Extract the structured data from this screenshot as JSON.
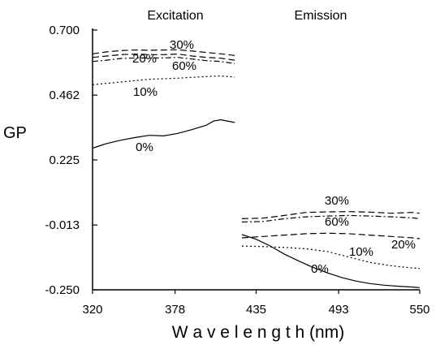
{
  "chart_data": {
    "type": "line",
    "xlabel": "W a v e l e n g t h  (nm)",
    "ylabel": "GP",
    "xlim": [
      320,
      550
    ],
    "ylim": [
      -0.25,
      0.7
    ],
    "x_ticks": [
      "320",
      "378",
      "435",
      "493",
      "550"
    ],
    "y_ticks": [
      "0.700",
      "0.462",
      "0.225",
      "-0.013",
      "-0.250"
    ],
    "grid": false,
    "panels": [
      {
        "title": "Excitation",
        "series": [
          {
            "name": "30%",
            "dash": "long-dash",
            "x": [
              320,
              330,
              340,
              350,
              360,
              370,
              380,
              390,
              400,
              410,
              420
            ],
            "y": [
              0.613,
              0.62,
              0.625,
              0.627,
              0.626,
              0.627,
              0.628,
              0.623,
              0.618,
              0.613,
              0.607
            ]
          },
          {
            "name": "20%",
            "dash": "long-dash",
            "x": [
              320,
              330,
              340,
              350,
              360,
              370,
              380,
              390,
              400,
              410,
              420
            ],
            "y": [
              0.6,
              0.605,
              0.61,
              0.612,
              0.61,
              0.61,
              0.612,
              0.605,
              0.6,
              0.597,
              0.59
            ]
          },
          {
            "name": "60%",
            "dash": "dash-dot",
            "x": [
              320,
              330,
              340,
              350,
              360,
              370,
              380,
              390,
              400,
              410,
              420
            ],
            "y": [
              0.585,
              0.59,
              0.596,
              0.598,
              0.598,
              0.598,
              0.6,
              0.594,
              0.588,
              0.585,
              0.577
            ]
          },
          {
            "name": "10%",
            "dash": "dotted",
            "x": [
              320,
              330,
              340,
              350,
              360,
              370,
              380,
              390,
              400,
              410,
              420
            ],
            "y": [
              0.5,
              0.505,
              0.51,
              0.515,
              0.52,
              0.522,
              0.524,
              0.527,
              0.53,
              0.532,
              0.528
            ]
          },
          {
            "name": "0%",
            "dash": "solid",
            "x": [
              320,
              330,
              340,
              350,
              360,
              370,
              380,
              390,
              400,
              405,
              410,
              420
            ],
            "y": [
              0.268,
              0.285,
              0.297,
              0.307,
              0.315,
              0.313,
              0.322,
              0.336,
              0.352,
              0.367,
              0.372,
              0.362
            ]
          }
        ]
      },
      {
        "title": "Emission",
        "series": [
          {
            "name": "30%",
            "dash": "long-dash",
            "x": [
              425,
              440,
              455,
              470,
              485,
              500,
              515,
              530,
              545,
              550
            ],
            "y": [
              0.01,
              0.012,
              0.022,
              0.033,
              0.035,
              0.036,
              0.034,
              0.03,
              0.033,
              0.03
            ]
          },
          {
            "name": "60%",
            "dash": "dash-dot",
            "x": [
              425,
              440,
              455,
              470,
              485,
              500,
              515,
              530,
              545,
              550
            ],
            "y": [
              -0.002,
              0.0,
              0.01,
              0.017,
              0.02,
              0.022,
              0.02,
              0.017,
              0.013,
              0.01
            ]
          },
          {
            "name": "20%",
            "dash": "long-dash",
            "x": [
              425,
              440,
              455,
              470,
              485,
              500,
              515,
              530,
              545,
              550
            ],
            "y": [
              -0.06,
              -0.055,
              -0.05,
              -0.045,
              -0.043,
              -0.045,
              -0.05,
              -0.055,
              -0.06,
              -0.063
            ]
          },
          {
            "name": "10%",
            "dash": "dotted",
            "x": [
              425,
              440,
              455,
              470,
              485,
              500,
              515,
              530,
              545,
              550
            ],
            "y": [
              -0.09,
              -0.092,
              -0.095,
              -0.1,
              -0.11,
              -0.13,
              -0.15,
              -0.162,
              -0.17,
              -0.172
            ]
          },
          {
            "name": "0%",
            "dash": "solid",
            "x": [
              425,
              435,
              445,
              455,
              465,
              475,
              485,
              495,
              505,
              515,
              525,
              535,
              545,
              550
            ],
            "y": [
              -0.048,
              -0.065,
              -0.09,
              -0.12,
              -0.145,
              -0.168,
              -0.188,
              -0.205,
              -0.218,
              -0.227,
              -0.233,
              -0.237,
              -0.24,
              -0.242
            ]
          }
        ]
      }
    ]
  }
}
